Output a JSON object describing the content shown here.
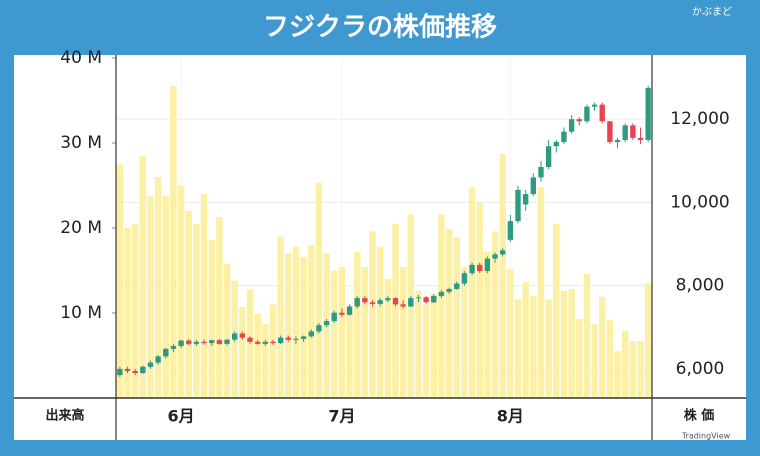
{
  "chart_data": {
    "type": "candlestick",
    "title": "フジクラの株価推移",
    "brand": "かぶまど",
    "credit": "TradingView",
    "y_label": "出来高",
    "y2_label": "株 価",
    "grid": true,
    "categories": [
      null,
      null,
      null,
      null,
      null,
      null,
      null,
      null,
      null,
      null,
      null,
      null,
      null,
      null,
      null,
      null,
      null,
      null,
      null,
      null,
      null,
      null,
      null,
      null,
      null,
      null,
      null,
      null,
      null,
      null,
      null,
      null,
      null,
      null,
      null,
      null,
      null,
      null,
      null,
      null,
      null,
      null,
      null,
      null,
      null,
      null,
      null,
      null,
      null,
      null,
      null,
      null,
      null,
      null,
      null,
      null,
      null,
      null,
      null,
      null,
      null,
      null,
      null,
      null,
      null,
      null,
      null,
      null,
      null,
      null
    ],
    "xticks": [
      {
        "value": 8,
        "label": "6月"
      },
      {
        "value": 29,
        "label": "7月"
      },
      {
        "value": 51,
        "label": "8月"
      }
    ],
    "ylim": [
      0,
      40
    ],
    "yticks": [
      {
        "value": 10,
        "label": "10 M"
      },
      {
        "value": 20,
        "label": "20 M"
      },
      {
        "value": 30,
        "label": "30 M"
      },
      {
        "value": 40,
        "label": "40 M"
      }
    ],
    "y2lim": [
      5300,
      13470
    ],
    "y2ticks": [
      {
        "value": 6000,
        "label": "6,000"
      },
      {
        "value": 8000,
        "label": "8,000"
      },
      {
        "value": 10000,
        "label": "10,000"
      },
      {
        "value": 12000,
        "label": "12,000"
      }
    ],
    "volume": {
      "axis": "y",
      "color": "#fbf0a3",
      "values": [
        27.5,
        20,
        20.5,
        28.5,
        23.8,
        26,
        23.8,
        36.7,
        25,
        22,
        20.5,
        24,
        18.6,
        21.3,
        15.8,
        13.8,
        10.7,
        12.8,
        9.9,
        8.7,
        11,
        19,
        17,
        17.8,
        16.6,
        18,
        25.3,
        17,
        15,
        15.4,
        10.5,
        17.2,
        15.4,
        19.6,
        17.8,
        14,
        20.5,
        15.4,
        21.6,
        12.6,
        11,
        12.2,
        21.6,
        19.9,
        18.9,
        15.4,
        24.8,
        23,
        17.2,
        19.6,
        28.7,
        15.2,
        11.6,
        13.6,
        12,
        24.8,
        11.6,
        20.5,
        12.6,
        12.8,
        9.3,
        14.6,
        8.7,
        11.9,
        9.2,
        5.5,
        7.9,
        6.7,
        6.7,
        13.5
      ]
    },
    "price": {
      "axis": "y2",
      "up_color": "#2e9b80",
      "down_color": "#e8434f",
      "open": [
        5850,
        6000,
        5950,
        5900,
        6050,
        6150,
        6300,
        6480,
        6550,
        6680,
        6600,
        6650,
        6620,
        6690,
        6600,
        6700,
        6850,
        6750,
        6650,
        6600,
        6650,
        6620,
        6750,
        6700,
        6720,
        6780,
        6900,
        7050,
        7150,
        7350,
        7300,
        7500,
        7700,
        7600,
        7560,
        7650,
        7700,
        7550,
        7500,
        7700,
        7720,
        7600,
        7750,
        7850,
        7920,
        8050,
        8300,
        8500,
        8350,
        8650,
        8750,
        9100,
        9550,
        9950,
        10200,
        10600,
        10850,
        11350,
        11450,
        11700,
        12000,
        11950,
        12300,
        12350,
        11950,
        11450,
        11500,
        11850,
        11550,
        11500
      ],
      "high": [
        6050,
        6050,
        6000,
        6080,
        6200,
        6330,
        6500,
        6600,
        6700,
        6720,
        6700,
        6700,
        6700,
        6720,
        6720,
        6900,
        6900,
        6780,
        6700,
        6700,
        6700,
        6800,
        6800,
        6780,
        6800,
        6950,
        7100,
        7200,
        7400,
        7450,
        7550,
        7750,
        7750,
        7650,
        7700,
        7750,
        7720,
        7650,
        7750,
        7780,
        7750,
        7800,
        7900,
        7950,
        8100,
        8350,
        8550,
        8550,
        8700,
        8800,
        8900,
        9700,
        10400,
        10300,
        10700,
        11000,
        11500,
        11500,
        11800,
        12100,
        12050,
        12350,
        12400,
        12400,
        11950,
        11550,
        11900,
        11900,
        11800,
        12800
      ],
      "low": [
        5800,
        5900,
        5850,
        5880,
        6000,
        6100,
        6250,
        6400,
        6500,
        6560,
        6550,
        6580,
        6550,
        6580,
        6560,
        6650,
        6700,
        6600,
        6580,
        6550,
        6580,
        6600,
        6650,
        6600,
        6650,
        6750,
        6850,
        7000,
        7100,
        7250,
        7280,
        7450,
        7550,
        7500,
        7500,
        7600,
        7500,
        7450,
        7480,
        7600,
        7550,
        7580,
        7700,
        7800,
        7900,
        8000,
        8250,
        8300,
        8300,
        8550,
        8700,
        9050,
        9500,
        9800,
        10150,
        10500,
        10800,
        11200,
        11400,
        11650,
        11850,
        11900,
        12200,
        11900,
        11400,
        11300,
        11450,
        11500,
        11400,
        11450
      ],
      "close": [
        6000,
        5950,
        5900,
        6050,
        6150,
        6300,
        6480,
        6550,
        6680,
        6600,
        6650,
        6620,
        6690,
        6600,
        6700,
        6850,
        6750,
        6650,
        6600,
        6650,
        6620,
        6750,
        6700,
        6720,
        6780,
        6900,
        7050,
        7150,
        7350,
        7300,
        7500,
        7700,
        7600,
        7560,
        7650,
        7700,
        7550,
        7500,
        7700,
        7720,
        7600,
        7750,
        7850,
        7920,
        8050,
        8300,
        8500,
        8350,
        8650,
        8750,
        8850,
        9550,
        10300,
        10200,
        10600,
        10850,
        11350,
        11450,
        11700,
        12000,
        11950,
        12300,
        12350,
        11950,
        11450,
        11500,
        11850,
        11550,
        11500,
        12750
      ]
    }
  }
}
